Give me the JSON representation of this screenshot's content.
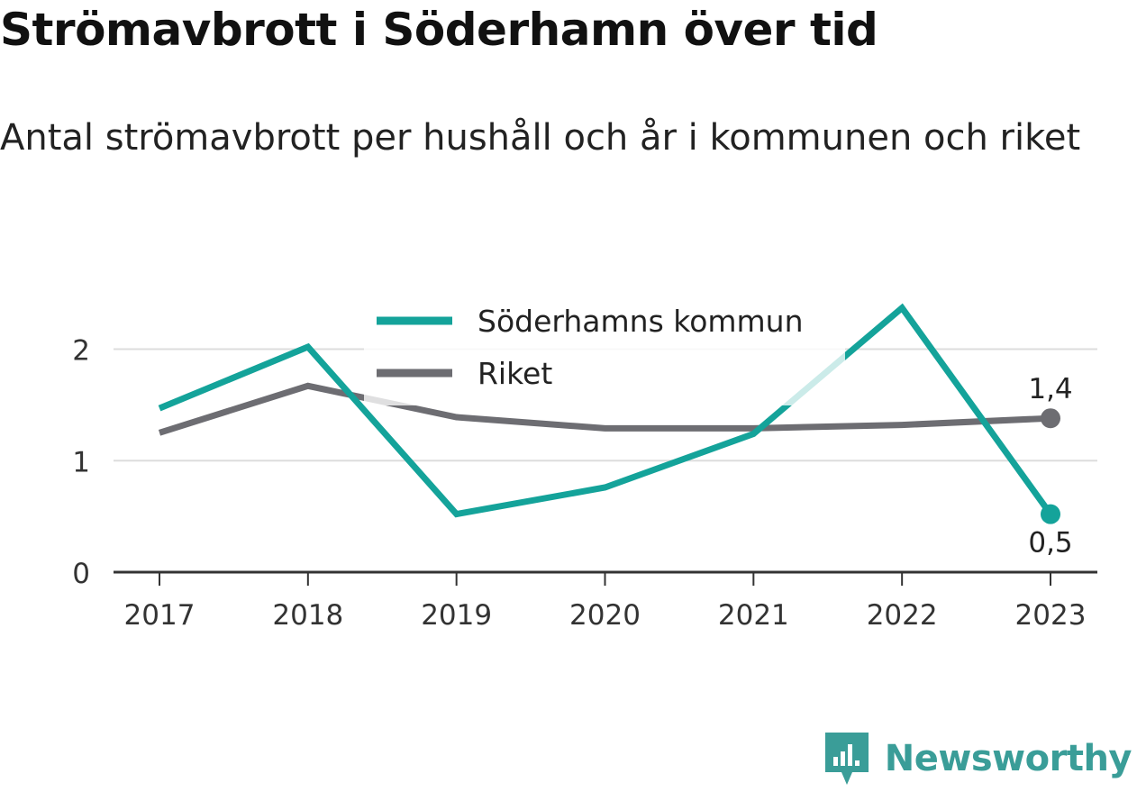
{
  "title": "Strömavbrott i Söderhamn över tid",
  "subtitle": "Antal strömavbrott per hushåll och år i kommunen och riket",
  "brand": {
    "name": "Newsworthy",
    "icon": "newsworthy-logo-icon",
    "color": "#3a9d98"
  },
  "chart_data": {
    "type": "line",
    "x": [
      "2017",
      "2018",
      "2019",
      "2020",
      "2021",
      "2022",
      "2023"
    ],
    "ylim": [
      0,
      2.4
    ],
    "yticks": [
      0,
      1,
      2
    ],
    "ytick_labels": [
      "0",
      "1",
      "2"
    ],
    "grid": true,
    "legend_position": "top-center",
    "series": [
      {
        "name": "Söderhamns kommun",
        "color": "#14a39a",
        "values": [
          1.47,
          2.02,
          0.52,
          0.76,
          1.24,
          2.37,
          0.52
        ],
        "end_label": "0,5",
        "end_label_position": "below"
      },
      {
        "name": "Riket",
        "color": "#6d6d72",
        "values": [
          1.25,
          1.67,
          1.39,
          1.29,
          1.29,
          1.32,
          1.38
        ],
        "end_label": "1,4",
        "end_label_position": "above"
      }
    ]
  }
}
